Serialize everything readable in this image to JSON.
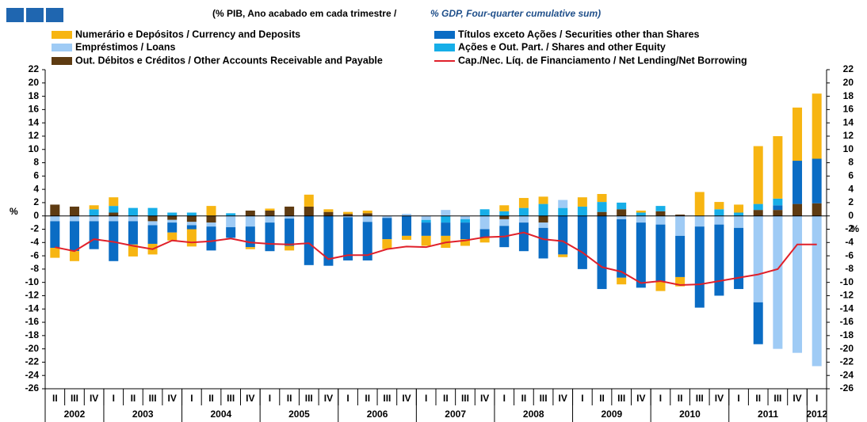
{
  "chart_data": {
    "type": "bar",
    "title": "(% PIB, Ano acabado em cada trimestre /",
    "title_en": "% GDP, Four-quarter cumulative sum)",
    "ylabel": "%",
    "y2label": "%",
    "categories": [
      "II",
      "III",
      "IV",
      "I",
      "II",
      "III",
      "IV",
      "I",
      "II",
      "III",
      "IV",
      "I",
      "II",
      "III",
      "IV",
      "I",
      "II",
      "III",
      "IV",
      "I",
      "II",
      "III",
      "IV",
      "I",
      "II",
      "III",
      "IV",
      "I",
      "II",
      "III",
      "IV",
      "I",
      "II",
      "III",
      "IV",
      "I",
      "II",
      "III",
      "IV",
      "I"
    ],
    "years": [
      "2002",
      "2003",
      "2004",
      "2005",
      "2006",
      "2007",
      "2008",
      "2009",
      "2010",
      "2011",
      "2012"
    ],
    "ylim": [
      -26,
      22
    ],
    "yticks": [
      -26,
      -24,
      -22,
      -20,
      -18,
      -16,
      -14,
      -12,
      -10,
      -8,
      -6,
      -4,
      -2,
      0,
      2,
      4,
      6,
      8,
      10,
      12,
      14,
      16,
      18,
      20,
      22
    ],
    "y2lim": [
      -26,
      22
    ],
    "y2ticks": [
      -26,
      -24,
      -22,
      -20,
      -18,
      -16,
      -14,
      -12,
      -10,
      -8,
      -6,
      -4,
      -2,
      0,
      2,
      4,
      6,
      8,
      10,
      12,
      14,
      16,
      18,
      20,
      22
    ],
    "grid": false,
    "stacked": true,
    "series": [
      {
        "name": "Numerário e Depósitos / Currency and Deposits",
        "color": "#f7b512",
        "values": [
          -1.5,
          -1.5,
          0.6,
          1.3,
          -1.8,
          -1.6,
          -1.2,
          -2.6,
          1.5,
          0,
          -0.3,
          0.3,
          -0.7,
          1.8,
          0.4,
          0.3,
          0.4,
          -1.5,
          -0.6,
          -1.5,
          -1.8,
          -1.0,
          -0.8,
          0.9,
          1.5,
          1.1,
          -0.4,
          1.4,
          1.2,
          -1.0,
          0.3,
          -1.4,
          -1.4,
          3.6,
          1.1,
          1.2,
          8.7,
          9.4,
          8.0,
          9.8
        ]
      },
      {
        "name": "Títulos exceto Ações / Securities other than Shares",
        "color": "#0a6cc4",
        "values": [
          -4.0,
          -4.5,
          -4.2,
          -6.0,
          -3.5,
          -2.8,
          -1.5,
          -0.6,
          -3.6,
          -1.6,
          -3.1,
          -4.3,
          -4.1,
          -7.4,
          -7.5,
          -6.5,
          -5.8,
          -3.2,
          -3.0,
          -2.0,
          -2.0,
          -2.5,
          -1.2,
          -3.2,
          -4.3,
          -4.6,
          -5.8,
          -8.0,
          -11.0,
          -8.8,
          -9.8,
          -8.6,
          -6.2,
          -12.2,
          -10.7,
          -9.2,
          -6.3,
          0.7,
          6.5,
          6.7
        ]
      },
      {
        "name": "Empréstimos / Loans",
        "color": "#9fcbf5",
        "values": [
          -0.8,
          -0.8,
          -0.8,
          -0.8,
          -0.8,
          -0.6,
          -0.4,
          -0.5,
          -0.6,
          -1.7,
          -1.6,
          -1.0,
          -0.4,
          0,
          0,
          -0.2,
          -0.9,
          -0.3,
          0.3,
          -0.6,
          0.9,
          -0.5,
          -2.0,
          -1.0,
          -1.0,
          -0.8,
          1.2,
          0,
          0,
          -0.5,
          -1.0,
          -1.3,
          -3.0,
          -1.6,
          -1.3,
          -1.8,
          -13.0,
          -20.0,
          -20.6,
          -22.6
        ]
      },
      {
        "name": "Ações e Out. Part. / Shares and other Equity",
        "color": "#16aee8",
        "values": [
          0,
          0,
          1.0,
          1.0,
          1.2,
          1.2,
          0.5,
          0.5,
          0,
          0.4,
          0,
          0,
          0,
          0,
          0,
          0,
          0,
          0,
          0,
          -0.4,
          -1.0,
          -0.5,
          1.0,
          0.7,
          1.2,
          1.8,
          1.2,
          1.4,
          1.5,
          1.0,
          0.5,
          0.8,
          0,
          0,
          1.0,
          0.5,
          0.9,
          1.0,
          0,
          0
        ]
      },
      {
        "name": "Out. Débitos e Créditos / Other Accounts Receivable and Payable",
        "color": "#5e3b12",
        "values": [
          1.7,
          1.4,
          0,
          0.5,
          0,
          -0.8,
          -0.6,
          -0.9,
          -1.0,
          0,
          0.8,
          0.8,
          1.4,
          1.4,
          0.6,
          0.3,
          0.4,
          0,
          0,
          0,
          0,
          0,
          0,
          -0.5,
          0,
          -1.0,
          0,
          0,
          0.6,
          1.0,
          0,
          0.7,
          0.2,
          0,
          0,
          0,
          0.9,
          0.9,
          1.8,
          1.9
        ]
      },
      {
        "name": "Cap./Nec. Líq. de Financiamento / Net Lending/Net Borrowing",
        "color": "#e0202a",
        "type": "line",
        "values": [
          -4.7,
          -5.3,
          -3.5,
          -3.9,
          -4.5,
          -5.0,
          -3.7,
          -4.0,
          -3.8,
          -3.4,
          -4.0,
          -4.2,
          -4.3,
          -4.1,
          -6.5,
          -5.9,
          -5.9,
          -5.0,
          -4.6,
          -4.7,
          -4.0,
          -3.7,
          -3.2,
          -3.1,
          -2.5,
          -3.5,
          -3.8,
          -5.5,
          -7.7,
          -8.4,
          -10.1,
          -9.8,
          -10.4,
          -10.3,
          -9.8,
          -9.3,
          -8.8,
          -8.0,
          -4.3,
          -4.3
        ]
      }
    ]
  }
}
